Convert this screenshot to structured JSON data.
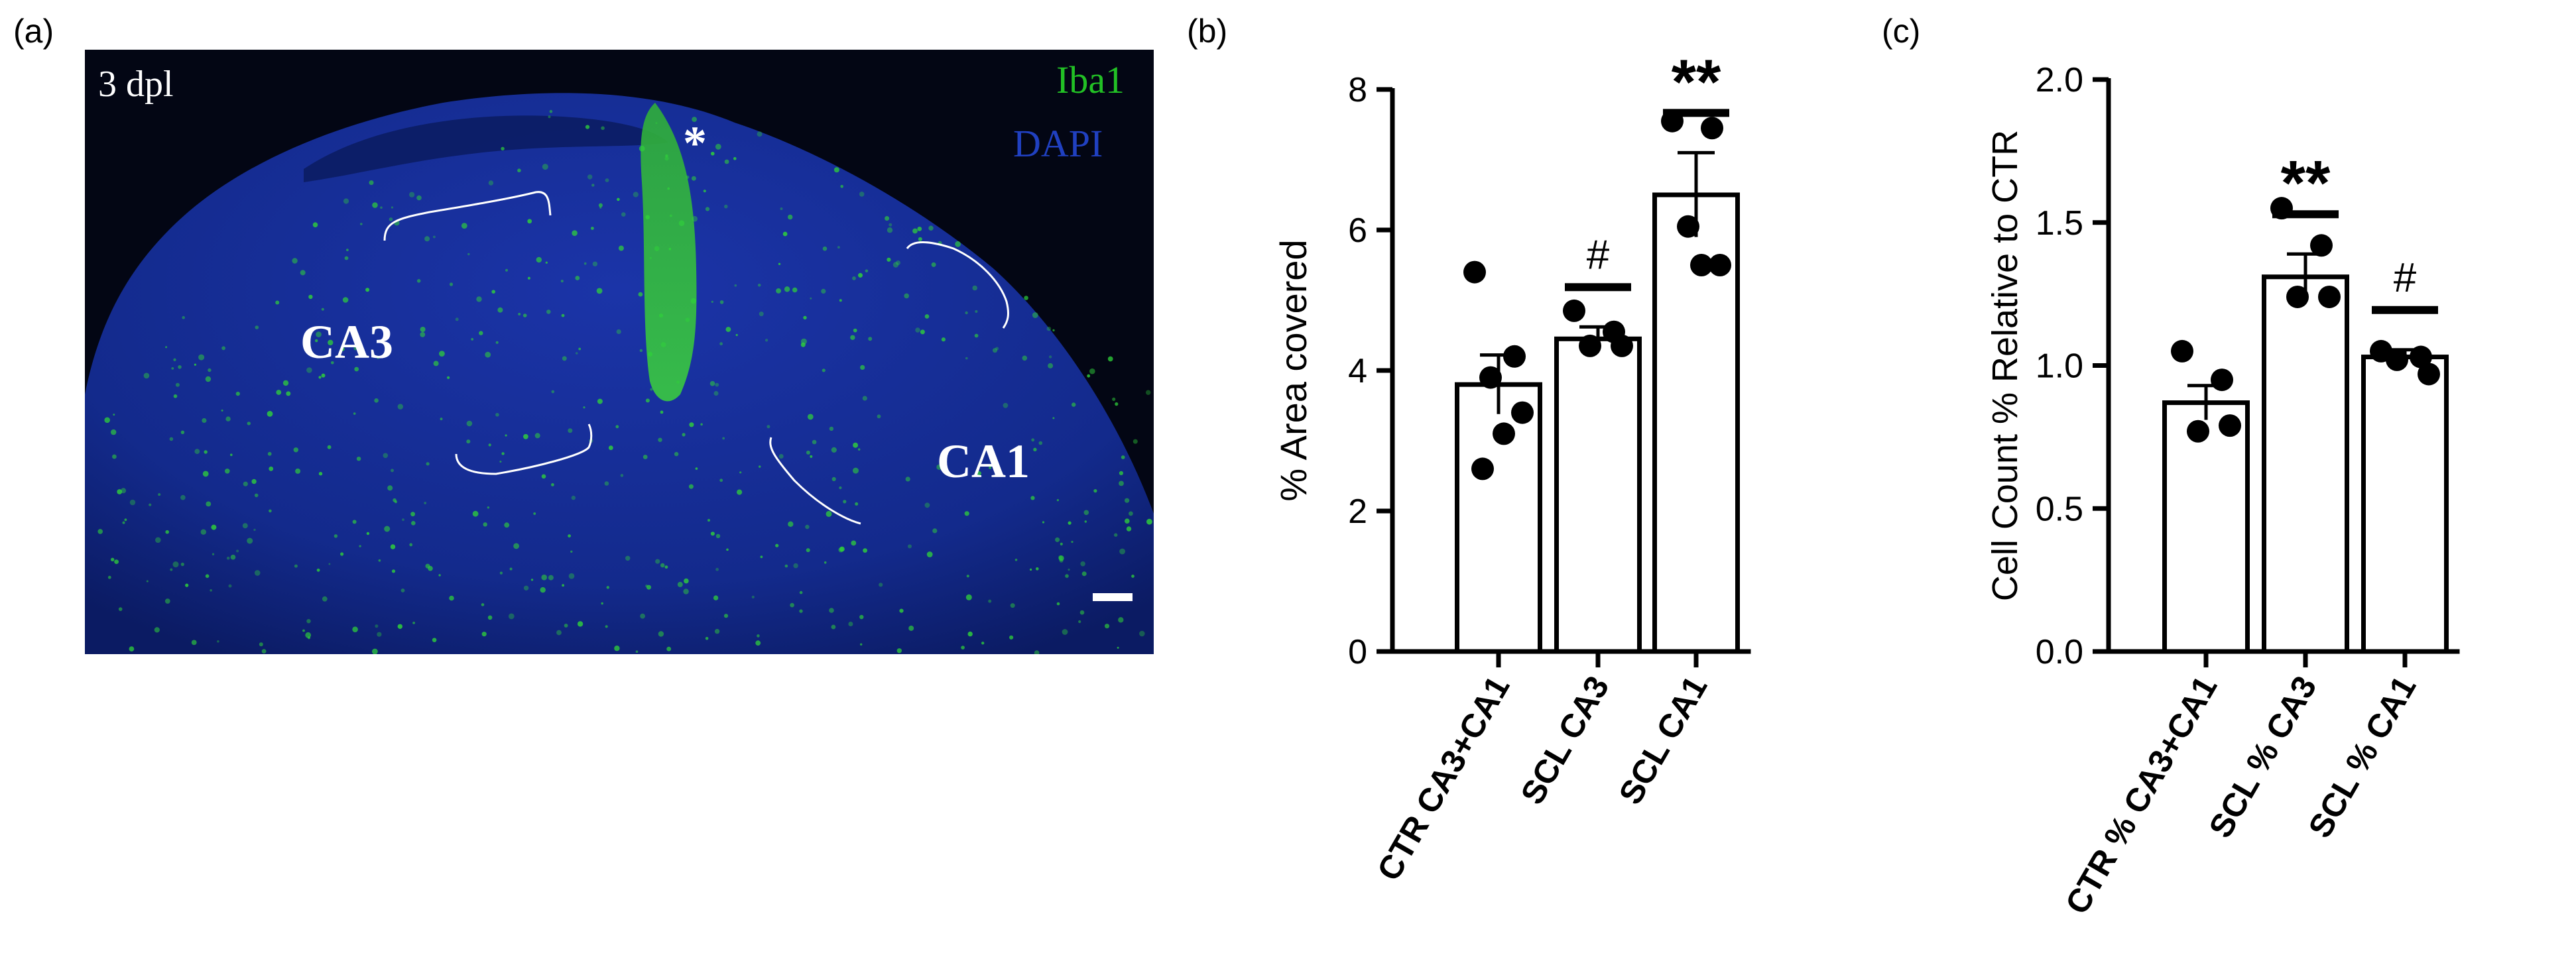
{
  "panels": {
    "a_label": "(a)",
    "b_label": "(b)",
    "c_label": "(c)"
  },
  "micrograph": {
    "timepoint": "3 dpl",
    "channel_green": "Iba1",
    "channel_blue": "DAPI",
    "region_left": "CA3",
    "region_right": "CA1",
    "lesion_marker": "*",
    "colors": {
      "green": "#22c025",
      "blue": "#1f3fbf",
      "background": "#030614"
    }
  },
  "chart_data": [
    {
      "type": "bar",
      "panel": "(b)",
      "ylabel": "% Area covered",
      "xlabel": "",
      "ylim": [
        0,
        8
      ],
      "yticks": [
        0,
        2,
        4,
        6,
        8
      ],
      "ytick_labels": [
        "0",
        "2",
        "4",
        "6",
        "8"
      ],
      "categories": [
        "CTR CA3+CA1",
        "SCL CA3",
        "SCL CA1"
      ],
      "values": [
        3.8,
        4.45,
        6.5
      ],
      "sem": [
        0.42,
        0.17,
        0.6
      ],
      "points": [
        [
          5.4,
          4.2,
          3.9,
          3.4,
          3.1,
          2.6
        ],
        [
          4.85,
          4.55,
          4.35,
          4.35
        ],
        [
          7.55,
          7.45,
          6.05,
          5.5,
          5.5
        ]
      ],
      "significance": [
        "",
        "#",
        "**"
      ]
    },
    {
      "type": "bar",
      "panel": "(c)",
      "ylabel": "Cell Count % Relative to CTR",
      "xlabel": "",
      "ylim": [
        0,
        2.0
      ],
      "yticks": [
        0,
        0.5,
        1.0,
        1.5,
        2.0
      ],
      "ytick_labels": [
        "0.0",
        "0.5",
        "1.0",
        "1.5",
        "2.0"
      ],
      "categories": [
        "CTR % CA3+CA1",
        "SCL % CA3",
        "SCL % CA1"
      ],
      "values": [
        0.87,
        1.31,
        1.03
      ],
      "sem": [
        0.06,
        0.08,
        0.025
      ],
      "points": [
        [
          1.05,
          0.95,
          0.77,
          0.79
        ],
        [
          1.55,
          1.42,
          1.24,
          1.24
        ],
        [
          1.05,
          1.03,
          1.02,
          0.97
        ]
      ],
      "significance": [
        "",
        "**",
        "#"
      ]
    }
  ]
}
